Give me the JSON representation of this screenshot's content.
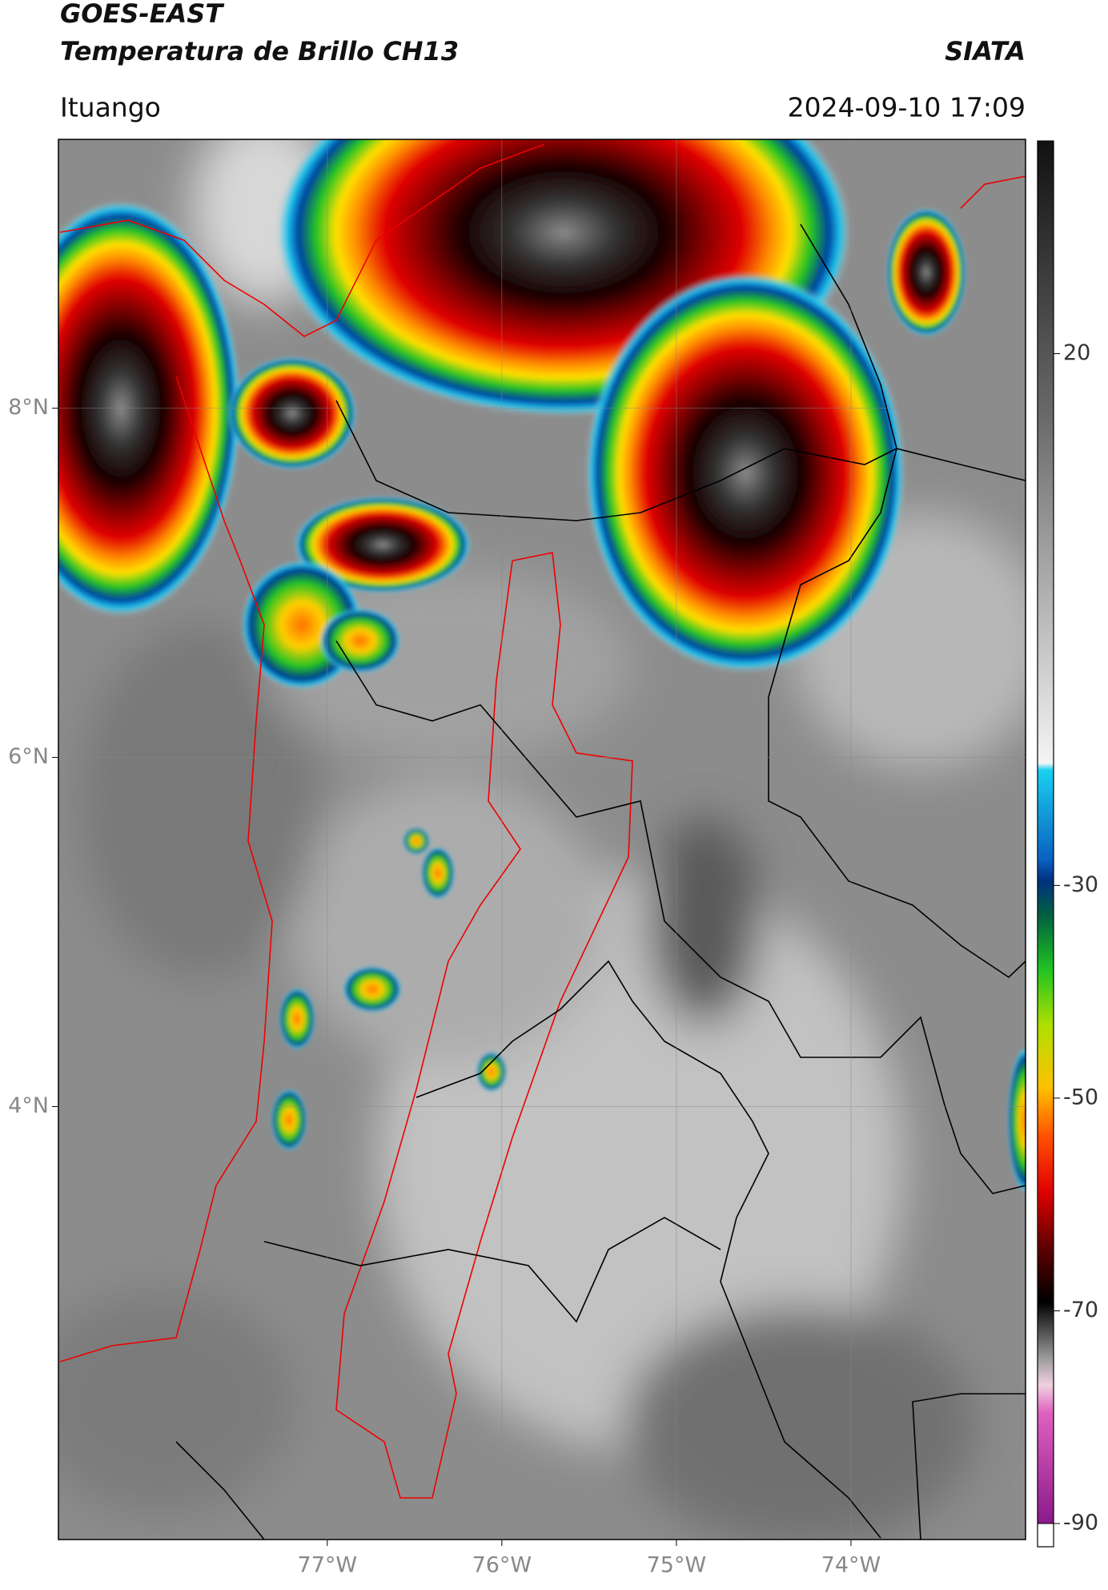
{
  "header": {
    "title": "GOES-EAST",
    "subtitle": "Temperatura de Brillo CH13",
    "source": "SIATA",
    "location": "Ituango",
    "timestamp": "2024-09-10 17:09"
  },
  "map": {
    "lonlim": [
      -78.54,
      -73.0
    ],
    "latlim": [
      1.52,
      9.54
    ],
    "lonticks": [
      {
        "value": -77,
        "label": "77°W"
      },
      {
        "value": -76,
        "label": "76°W"
      },
      {
        "value": -75,
        "label": "75°W"
      },
      {
        "value": -74,
        "label": "74°W"
      }
    ],
    "latticks": [
      {
        "value": 8,
        "label": "8°N"
      },
      {
        "value": 6,
        "label": "6°N"
      },
      {
        "value": 4,
        "label": "4°N"
      }
    ]
  },
  "colorbar": {
    "lim": [
      -90,
      40
    ],
    "ticks": [
      20,
      -30,
      -50,
      -70,
      -90
    ]
  }
}
